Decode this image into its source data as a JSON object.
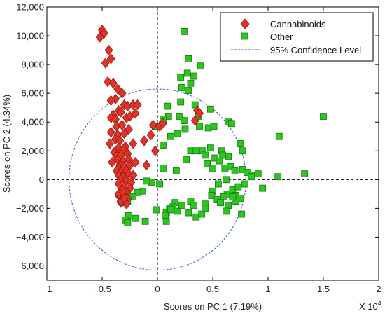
{
  "chart_data": {
    "type": "scatter",
    "xlabel": "Scores on PC 1 (7.19%)",
    "ylabel": "Scores on PC 2 (4.34%)",
    "x_multiplier_label": "X 10",
    "x_multiplier_exponent": "4",
    "xlim": [
      -1,
      2
    ],
    "ylim": [
      -7000,
      12000
    ],
    "x_ticks": [
      -1,
      -0.5,
      0,
      0.5,
      1,
      1.5,
      2
    ],
    "x_tick_labels": [
      "−1",
      "−0.5",
      "0",
      "0.5",
      "1",
      "1.5",
      "2"
    ],
    "y_ticks": [
      -6000,
      -4000,
      -2000,
      0,
      2000,
      4000,
      6000,
      8000,
      10000,
      12000
    ],
    "y_tick_labels": [
      "−6,000",
      "−4,000",
      "−2,000",
      "0",
      "2,000",
      "4,000",
      "6,000",
      "8,000",
      "10,000",
      "12,000"
    ],
    "grid": false,
    "legend_position": "top-right",
    "confidence_ellipse": {
      "label": "95% Confidence Level",
      "center": [
        0,
        0
      ],
      "rx": 0.8,
      "ry": 6300
    },
    "series": [
      {
        "name": "Cannabinoids",
        "marker": "diamond",
        "color": "#e0332a",
        "x": [
          -0.5,
          -0.48,
          -0.52,
          -0.44,
          -0.42,
          -0.47,
          -0.45,
          -0.4,
          -0.36,
          -0.32,
          -0.38,
          -0.42,
          -0.3,
          -0.27,
          -0.22,
          -0.18,
          -0.35,
          -0.33,
          -0.4,
          -0.42,
          -0.38,
          -0.28,
          -0.25,
          -0.2,
          -0.37,
          -0.32,
          -0.42,
          -0.36,
          -0.3,
          -0.26,
          -0.38,
          -0.34,
          -0.43,
          -0.29,
          -0.22,
          -0.35,
          -0.31,
          -0.39,
          -0.37,
          -0.33,
          -0.27,
          -0.36,
          -0.31,
          -0.26,
          -0.41,
          -0.34,
          -0.2,
          -0.1,
          -0.35,
          -0.3,
          -0.25,
          -0.37,
          -0.33,
          -0.28,
          -0.35,
          -0.31,
          -0.26,
          -0.22,
          -0.33,
          -0.28,
          -0.24,
          -0.35,
          -0.3,
          -0.25,
          -0.33,
          -0.28,
          -0.35,
          -0.3,
          -0.32,
          -0.27,
          -0.33,
          -0.28,
          -0.35,
          -0.31,
          -0.33,
          -0.3,
          -0.12,
          -0.06,
          -0.02,
          0.02,
          0.05,
          -0.04,
          0.36,
          0.38,
          0.34
        ],
        "y": [
          10400,
          10200,
          9900,
          9000,
          8400,
          8100,
          6800,
          6700,
          6300,
          6000,
          5600,
          5500,
          5200,
          5100,
          5200,
          5200,
          4800,
          4700,
          4500,
          4300,
          4200,
          4300,
          4400,
          4600,
          3700,
          3800,
          3300,
          3100,
          3200,
          3500,
          2800,
          2700,
          2500,
          2300,
          2500,
          2200,
          2100,
          1900,
          1600,
          1700,
          1800,
          1400,
          1300,
          1400,
          1200,
          1000,
          1200,
          1000,
          800,
          900,
          1000,
          600,
          500,
          600,
          300,
          200,
          400,
          300,
          0,
          -100,
          -200,
          -300,
          -500,
          -600,
          -800,
          -900,
          -1100,
          -1200,
          -1400,
          -1300,
          -1600,
          -1700,
          -1000,
          -900,
          -1500,
          -1300,
          2700,
          3100,
          2000,
          3700,
          3900,
          3800,
          4800,
          4600,
          4100
        ]
      },
      {
        "name": "Other",
        "marker": "square",
        "color": "#2ec422",
        "x": [
          0.24,
          0.28,
          0.33,
          0.39,
          0.27,
          0.21,
          0.3,
          0.22,
          0.28,
          0.21,
          0.09,
          0.1,
          0.2,
          0.05,
          0.24,
          0.34,
          0.37,
          0.48,
          0.38,
          0.25,
          0.18,
          0.05,
          -0.02,
          0.12,
          0.46,
          0.51,
          0.64,
          0.67,
          0.3,
          0.35,
          0.41,
          0.48,
          0.58,
          0.75,
          0.77,
          0.64,
          0.59,
          0.52,
          0.43,
          0.45,
          1.1,
          1.5,
          0.5,
          0.56,
          0.61,
          0.66,
          0.7,
          0.77,
          0.81,
          0.85,
          0.91,
          1.09,
          1.33,
          0.85,
          0.95,
          0.55,
          0.5,
          0.63,
          0.68,
          0.79,
          0.6,
          0.49,
          0.54,
          0.57,
          0.43,
          0.3,
          0.33,
          0.16,
          0.14,
          0.08,
          0.11,
          0.18,
          0.28,
          0.22,
          0.35,
          0.4,
          0.43,
          0.26,
          0.17,
          0.05,
          0.02,
          -0.05,
          -0.1,
          -0.14,
          -0.18,
          -0.22,
          -0.27,
          -0.3,
          0.12,
          -0.01,
          0.07,
          0.08,
          -0.2,
          -0.11,
          -0.26,
          -0.29,
          -0.27,
          0.62,
          0.71,
          0.75,
          0.76,
          0.64,
          0.71,
          0.62,
          0.68,
          0.73
        ],
        "y": [
          10300,
          8400,
          7200,
          7900,
          7400,
          7100,
          6700,
          6400,
          6200,
          5400,
          5100,
          4400,
          4400,
          4200,
          4100,
          5200,
          4400,
          4900,
          3700,
          3500,
          3200,
          2400,
          3700,
          3000,
          3600,
          3700,
          4000,
          3900,
          2000,
          2000,
          2000,
          2200,
          2000,
          2500,
          2000,
          1600,
          1700,
          1500,
          1700,
          1100,
          3000,
          4400,
          800,
          1300,
          800,
          900,
          600,
          700,
          500,
          300,
          400,
          200,
          400,
          200,
          -600,
          -300,
          -800,
          -1000,
          -700,
          -300,
          -1200,
          -1100,
          -1400,
          -1600,
          -1700,
          -1500,
          -1800,
          -1600,
          -1900,
          -2300,
          -2000,
          -2200,
          -2300,
          -1800,
          -2600,
          -2400,
          -2000,
          1400,
          600,
          800,
          -300,
          -200,
          -100,
          -800,
          -900,
          -1200,
          -1500,
          -1600,
          -2100,
          -2100,
          -2500,
          -2900,
          -2700,
          -2900,
          -2500,
          -2800,
          -3000,
          0,
          -1100,
          -1300,
          -2400,
          -1800,
          -1500,
          -2200,
          -1200,
          -500
        ]
      }
    ]
  }
}
